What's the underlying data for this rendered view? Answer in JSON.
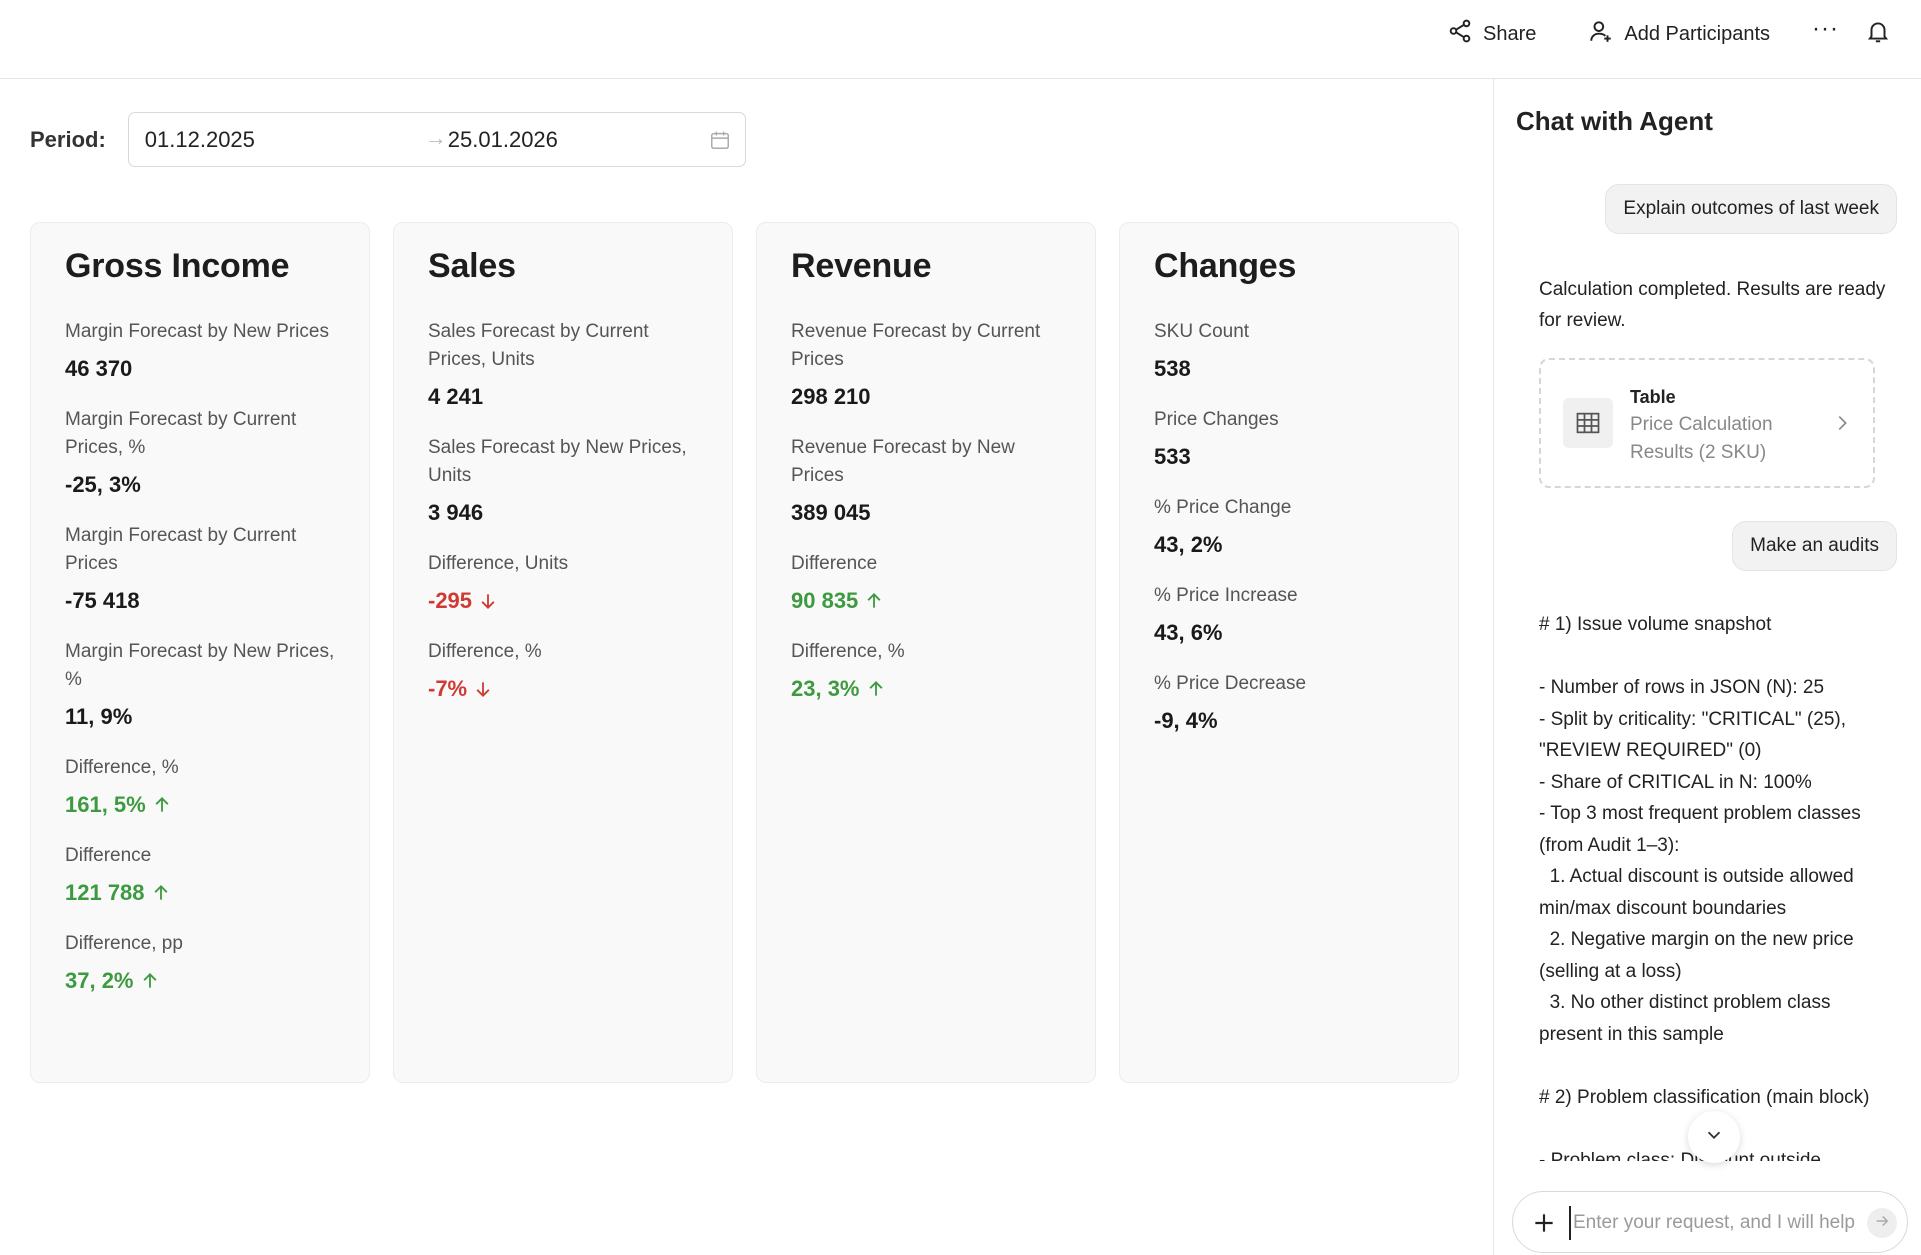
{
  "header": {
    "share_label": "Share",
    "add_participants_label": "Add Participants",
    "more_label": "···"
  },
  "period": {
    "label": "Period:",
    "from": "01.12.2025",
    "arrow": "→",
    "to": "25.01.2026"
  },
  "cards": {
    "gross_income": {
      "title": "Gross Income",
      "metrics": [
        {
          "label": "Margin Forecast by New Prices",
          "value": "46 370"
        },
        {
          "label": "Margin Forecast by Current Prices, %",
          "value": "-25, 3%"
        },
        {
          "label": "Margin Forecast by Current Prices",
          "value": "-75 418"
        },
        {
          "label": "Margin Forecast by New Prices, %",
          "value": "11, 9%"
        },
        {
          "label": "Difference, %",
          "value": "161, 5%",
          "trend": "up"
        },
        {
          "label": "Difference",
          "value": "121 788",
          "trend": "up"
        },
        {
          "label": "Difference, pp",
          "value": "37, 2%",
          "trend": "up"
        }
      ]
    },
    "sales": {
      "title": "Sales",
      "metrics": [
        {
          "label": "Sales Forecast by Current Prices, Units",
          "value": "4 241"
        },
        {
          "label": "Sales Forecast by New Prices, Units",
          "value": "3 946"
        },
        {
          "label": "Difference, Units",
          "value": "-295",
          "trend": "down"
        },
        {
          "label": "Difference, %",
          "value": "-7%",
          "trend": "down"
        }
      ]
    },
    "revenue": {
      "title": "Revenue",
      "metrics": [
        {
          "label": "Revenue Forecast by Current Prices",
          "value": "298 210"
        },
        {
          "label": "Revenue Forecast by New Prices",
          "value": "389 045"
        },
        {
          "label": "Difference",
          "value": "90 835",
          "trend": "up"
        },
        {
          "label": "Difference, %",
          "value": "23, 3%",
          "trend": "up"
        }
      ]
    },
    "changes": {
      "title": "Changes",
      "metrics": [
        {
          "label": "SKU Count",
          "value": "538"
        },
        {
          "label": "Price Changes",
          "value": "533"
        },
        {
          "label": "% Price Change",
          "value": "43, 2%"
        },
        {
          "label": "% Price Increase",
          "value": "43, 6%"
        },
        {
          "label": "% Price Decrease",
          "value": "-9, 4%"
        }
      ]
    }
  },
  "chat": {
    "title": "Chat with Agent",
    "user_message_1": "Explain outcomes of last week",
    "agent_message_1": "Calculation completed. Results are ready for review.",
    "table_card": {
      "title": "Table",
      "description": "Price Calculation Results (2 SKU)"
    },
    "user_message_2": "Make an audits",
    "agent_message_2": "# 1) Issue volume snapshot\n\n- Number of rows in JSON (N): 25\n- Split by criticality: \"CRITICAL\" (25), \"REVIEW REQUIRED\" (0)\n- Share of CRITICAL in N: 100%\n- Top 3 most frequent problem classes (from Audit 1–3):\n  1. Actual discount is outside allowed min/max discount boundaries\n  2. Negative margin on the new price (selling at a loss)\n  3. No other distinct problem class present in this sample\n\n# 2) Problem classification (main block)\n\n- Problem class: Discount outside",
    "input_placeholder": "Enter your request, and I will help"
  },
  "colors": {
    "up": "#3d9a40",
    "down": "#cf3b34"
  }
}
